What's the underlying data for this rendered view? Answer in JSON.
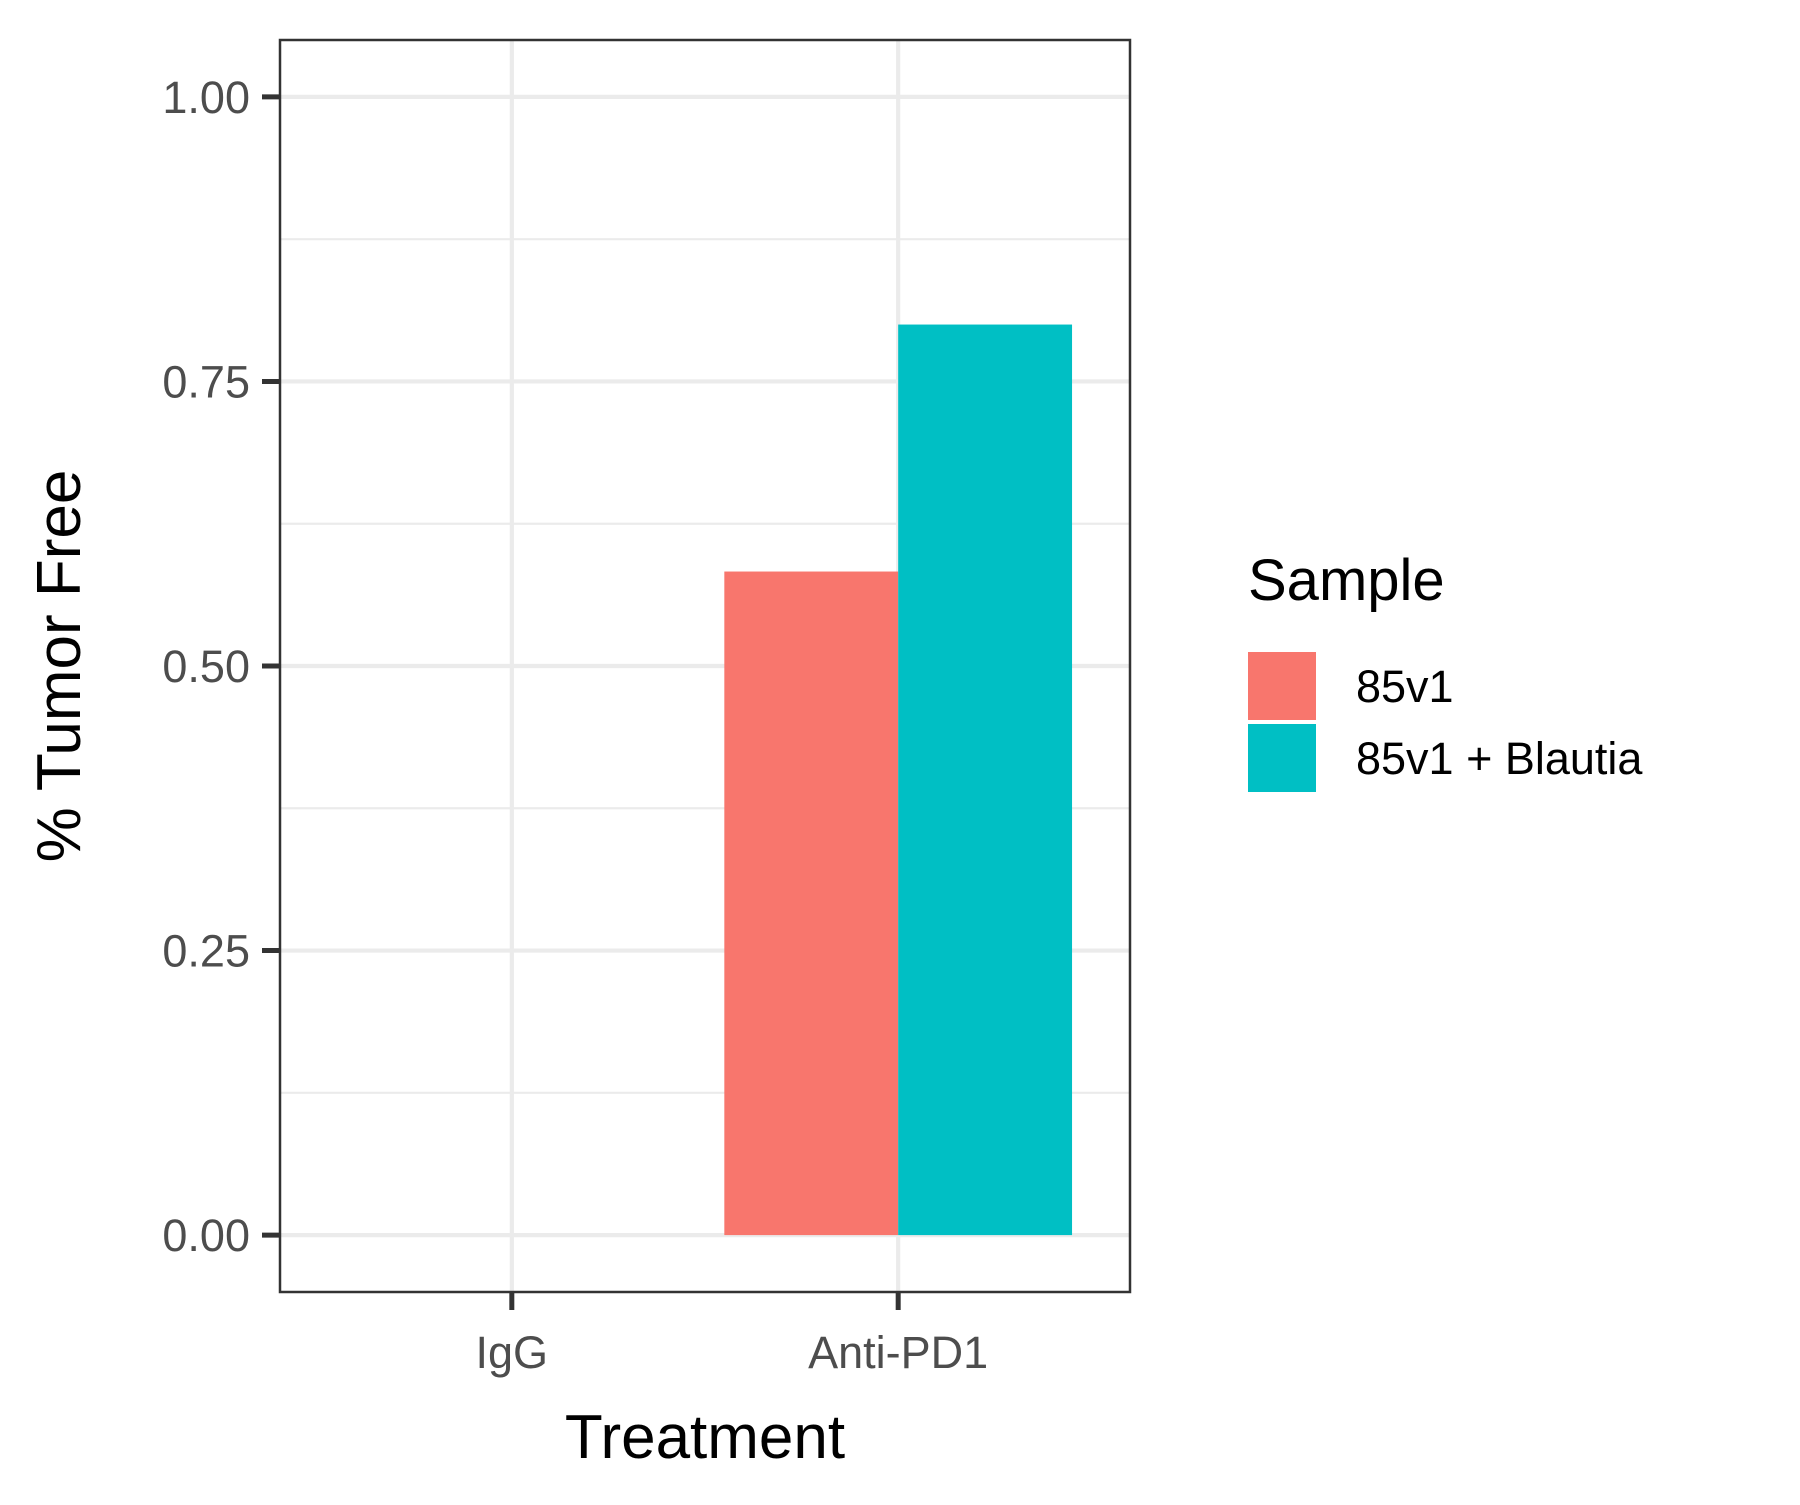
{
  "chart_data": {
    "type": "bar",
    "categories": [
      "IgG",
      "Anti-PD1"
    ],
    "series": [
      {
        "name": "85v1",
        "color": "#F8766D",
        "values": [
          0,
          0.583
        ]
      },
      {
        "name": "85v1 + Blautia",
        "color": "#00BFC4",
        "values": [
          0,
          0.8
        ]
      }
    ],
    "xlabel": "Treatment",
    "ylabel": "% Tumor Free",
    "ylim": [
      -0.05,
      1.05
    ],
    "yticks": [
      0.0,
      0.25,
      0.5,
      0.75,
      1.0
    ],
    "ytick_labels": [
      "0.00",
      "0.25",
      "0.50",
      "0.75",
      "1.00"
    ],
    "legend_title": "Sample",
    "legend_position": "right",
    "grid": true,
    "grid_color": "#ebebeb",
    "panel_border_color": "#333333"
  }
}
